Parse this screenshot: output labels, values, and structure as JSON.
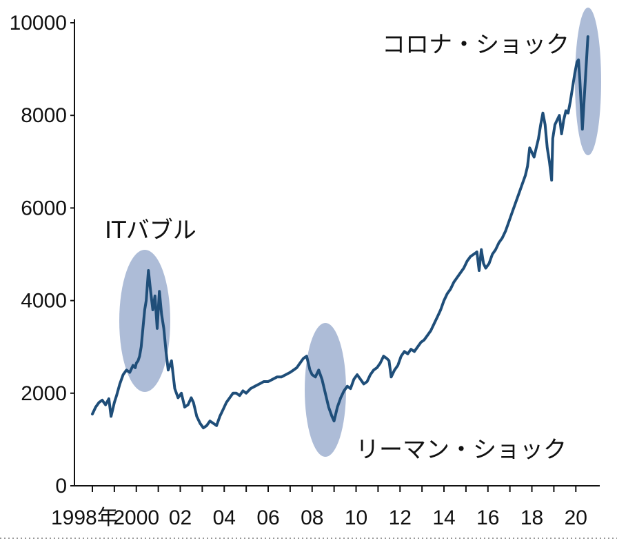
{
  "chart_data": {
    "type": "line",
    "title": "",
    "xlabel": "",
    "ylabel": "",
    "ylim": [
      0,
      10000
    ],
    "xlim": [
      1998,
      2020.65
    ],
    "grid": false,
    "y_ticks": [
      0,
      2000,
      4000,
      6000,
      8000,
      10000
    ],
    "y_tick_labels": [
      "0",
      "2000",
      "4000",
      "6000",
      "8000",
      "10000"
    ],
    "x_ticks": [
      1998,
      1999,
      2000,
      2001,
      2002,
      2003,
      2004,
      2005,
      2006,
      2007,
      2008,
      2009,
      2010,
      2011,
      2012,
      2013,
      2014,
      2015,
      2016,
      2017,
      2018,
      2019,
      2020
    ],
    "x_tick_labels": [
      {
        "year": 1998,
        "label": "1998年"
      },
      {
        "year": 2000,
        "label": "2000"
      },
      {
        "year": 2002,
        "label": "02"
      },
      {
        "year": 2004,
        "label": "04"
      },
      {
        "year": 2006,
        "label": "06"
      },
      {
        "year": 2008,
        "label": "08"
      },
      {
        "year": 2010,
        "label": "10"
      },
      {
        "year": 2012,
        "label": "12"
      },
      {
        "year": 2014,
        "label": "14"
      },
      {
        "year": 2016,
        "label": "16"
      },
      {
        "year": 2018,
        "label": "18"
      },
      {
        "year": 2020,
        "label": "20"
      }
    ],
    "colors": {
      "line": "#1f4e79",
      "highlight": "#8ea2c8",
      "axis": "#111111"
    },
    "series": [
      {
        "x": [
          1998.0,
          1998.15,
          1998.3,
          1998.45,
          1998.6,
          1998.75,
          1998.85,
          1999.0,
          1999.1,
          1999.25,
          1999.4,
          1999.55,
          1999.7,
          1999.85,
          1999.95,
          2000.0,
          2000.08,
          2000.15,
          2000.22,
          2000.3,
          2000.38,
          2000.45,
          2000.55,
          2000.65,
          2000.75,
          2000.85,
          2000.95,
          2001.05,
          2001.15,
          2001.25,
          2001.35,
          2001.45,
          2001.6,
          2001.75,
          2001.9,
          2002.05,
          2002.2,
          2002.35,
          2002.5,
          2002.6,
          2002.75,
          2002.9,
          2003.05,
          2003.2,
          2003.35,
          2003.5,
          2003.65,
          2003.8,
          2003.95,
          2004.1,
          2004.25,
          2004.4,
          2004.55,
          2004.7,
          2004.85,
          2005.0,
          2005.2,
          2005.4,
          2005.6,
          2005.8,
          2006.0,
          2006.2,
          2006.4,
          2006.6,
          2006.8,
          2007.0,
          2007.15,
          2007.3,
          2007.45,
          2007.6,
          2007.75,
          2007.9,
          2008.0,
          2008.15,
          2008.3,
          2008.45,
          2008.6,
          2008.75,
          2008.9,
          2009.0,
          2009.15,
          2009.3,
          2009.45,
          2009.6,
          2009.75,
          2009.9,
          2010.05,
          2010.2,
          2010.35,
          2010.5,
          2010.65,
          2010.8,
          2010.95,
          2011.1,
          2011.25,
          2011.4,
          2011.5,
          2011.6,
          2011.75,
          2011.9,
          2012.05,
          2012.2,
          2012.35,
          2012.5,
          2012.65,
          2012.8,
          2012.95,
          2013.1,
          2013.25,
          2013.4,
          2013.55,
          2013.7,
          2013.85,
          2014.0,
          2014.15,
          2014.3,
          2014.45,
          2014.6,
          2014.75,
          2014.9,
          2015.05,
          2015.2,
          2015.35,
          2015.5,
          2015.6,
          2015.7,
          2015.8,
          2015.9,
          2016.05,
          2016.2,
          2016.35,
          2016.5,
          2016.65,
          2016.8,
          2016.95,
          2017.1,
          2017.25,
          2017.4,
          2017.55,
          2017.7,
          2017.8,
          2017.9,
          2018.0,
          2018.1,
          2018.2,
          2018.3,
          2018.4,
          2018.5,
          2018.6,
          2018.7,
          2018.8,
          2018.9,
          2018.95,
          2019.05,
          2019.15,
          2019.25,
          2019.35,
          2019.45,
          2019.55,
          2019.65,
          2019.75,
          2019.85,
          2019.95,
          2020.05,
          2020.12,
          2020.18,
          2020.3,
          2020.45,
          2020.55
        ],
        "values": [
          1550,
          1700,
          1800,
          1850,
          1750,
          1880,
          1500,
          1800,
          1950,
          2200,
          2400,
          2500,
          2450,
          2600,
          2550,
          2650,
          2700,
          2800,
          3000,
          3400,
          3800,
          4000,
          4650,
          4200,
          3800,
          4100,
          3400,
          4200,
          3700,
          3400,
          2900,
          2500,
          2700,
          2100,
          1900,
          2000,
          1700,
          1750,
          1900,
          1800,
          1500,
          1350,
          1250,
          1300,
          1400,
          1350,
          1300,
          1500,
          1650,
          1800,
          1900,
          2000,
          2000,
          1950,
          2050,
          2000,
          2100,
          2150,
          2200,
          2250,
          2250,
          2300,
          2350,
          2350,
          2400,
          2450,
          2500,
          2550,
          2650,
          2750,
          2800,
          2500,
          2400,
          2350,
          2500,
          2300,
          2000,
          1700,
          1500,
          1400,
          1700,
          1900,
          2050,
          2150,
          2100,
          2300,
          2400,
          2300,
          2200,
          2250,
          2400,
          2500,
          2550,
          2650,
          2800,
          2750,
          2700,
          2350,
          2500,
          2600,
          2800,
          2900,
          2850,
          2950,
          2900,
          3000,
          3100,
          3150,
          3250,
          3350,
          3500,
          3650,
          3800,
          4000,
          4150,
          4250,
          4400,
          4500,
          4600,
          4700,
          4850,
          4950,
          5000,
          5050,
          4650,
          5100,
          4800,
          4700,
          4800,
          5000,
          5100,
          5250,
          5350,
          5500,
          5700,
          5900,
          6100,
          6300,
          6500,
          6700,
          6900,
          7300,
          7200,
          7100,
          7300,
          7500,
          7800,
          8050,
          7800,
          7300,
          7000,
          6600,
          7500,
          7800,
          7900,
          8000,
          7600,
          7900,
          8100,
          8050,
          8300,
          8600,
          8900,
          9150,
          9200,
          8800,
          7700,
          8900,
          9700
        ]
      }
    ],
    "annotations": [
      {
        "label": "ITバブル",
        "x": 2000.5,
        "y": 3700
      },
      {
        "label": "リーマン・ショック",
        "x": 2008.6,
        "y": 1950
      },
      {
        "label": "コロナ・ショック",
        "x": 2020.3,
        "y": 8650
      }
    ]
  }
}
